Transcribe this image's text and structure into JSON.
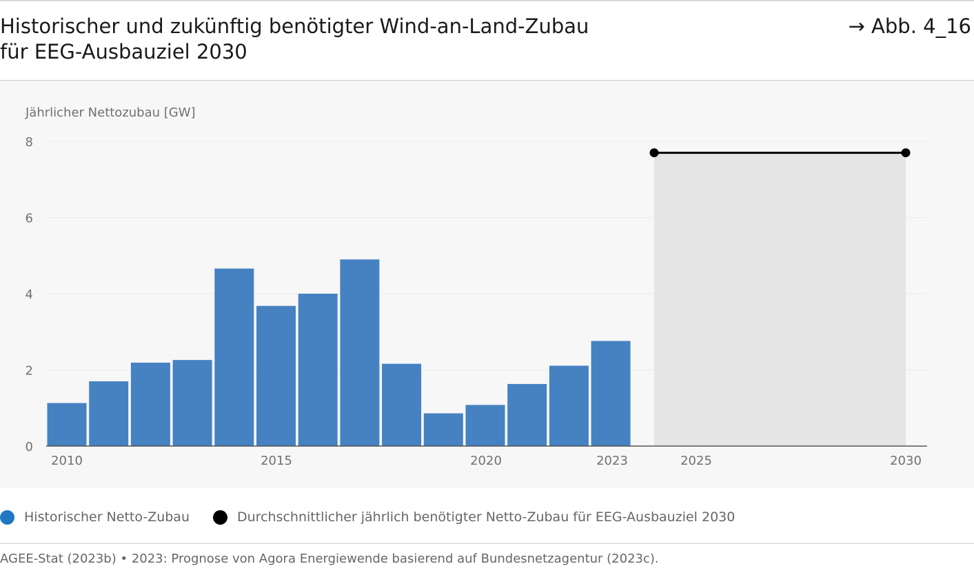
{
  "header": {
    "title_line1": "Historischer und zukünftig benötigter Wind-an-Land-Zubau",
    "title_line2": "für EEG-Ausbauziel 2030",
    "figure_ref": "→ Abb. 4_16"
  },
  "colors": {
    "bar": "#4682c2",
    "target_line": "#000000",
    "target_area": "#e5e5e5",
    "axis": "#555555",
    "grid": "#ebebeb",
    "panel_bg": "#f7f7f7",
    "legend_historic": "#1f78c1",
    "legend_target": "#000000"
  },
  "legend": {
    "items": [
      {
        "label": "Historischer Netto-Zubau",
        "color": "#1f78c1"
      },
      {
        "label": "Durchschnittlicher jährlich benötigter Netto-Zubau für EEG-Ausbauziel 2030",
        "color": "#000000"
      }
    ]
  },
  "footer": {
    "source": "AGEE-Stat (2023b) • 2023: Prognose von Agora Energiewende basierend auf Bundesnetzagentur (2023c)."
  },
  "chart_data": {
    "type": "bar",
    "ylabel": "Jährlicher Nettozubau [GW]",
    "ylim": [
      0,
      8
    ],
    "yticks": [
      0,
      2,
      4,
      6,
      8
    ],
    "xlim": [
      2009.5,
      2030.5
    ],
    "xticks": [
      2010,
      2015,
      2020,
      2023,
      2025,
      2030
    ],
    "grid": true,
    "series": [
      {
        "name": "Historischer Netto-Zubau",
        "type": "bar",
        "x": [
          2010,
          2011,
          2012,
          2013,
          2014,
          2015,
          2016,
          2017,
          2018,
          2019,
          2020,
          2021,
          2022,
          2023
        ],
        "values": [
          1.13,
          1.7,
          2.19,
          2.26,
          4.66,
          3.68,
          4.0,
          4.9,
          2.16,
          0.86,
          1.08,
          1.63,
          2.11,
          2.76
        ]
      },
      {
        "name": "Durchschnittlicher jährlich benötigter Netto-Zubau für EEG-Ausbauziel 2030",
        "type": "line",
        "x": [
          2024,
          2030
        ],
        "values": [
          7.7,
          7.7
        ]
      }
    ]
  }
}
